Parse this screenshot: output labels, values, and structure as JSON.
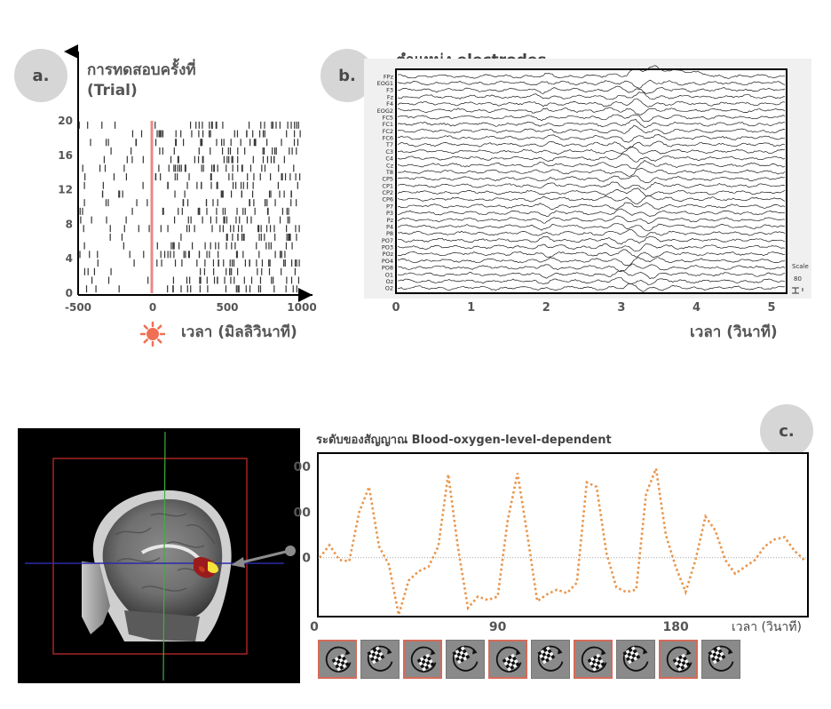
{
  "panels": [
    {
      "id": "a",
      "badge": "a.",
      "ylabel_line1": "การทดสอบครั้งที่",
      "ylabel_line2": "(Trial)",
      "xlabel": "เวลา (มิลลิวินาที)",
      "stimulus_icon": "sun-icon",
      "stimulus_color": "#ef6f55",
      "onset_line_color": "#e88a8a"
    },
    {
      "id": "b",
      "badge": "b.",
      "title": "ตำแหน่ง electrodes",
      "xlabel": "เวลา (วินาที)",
      "scale_label": "Scale",
      "scale_value": "80"
    },
    {
      "id": "c",
      "badge": "c.",
      "title": "ระดับของสัญญาณ Blood-oxygen-level-dependent",
      "xlabel": "เวลา (วินาที)",
      "series_color": "#e9954a",
      "stimulus_frame_count": 10
    }
  ],
  "chart_data": [
    {
      "type": "scatter",
      "subtype": "raster",
      "title": "",
      "xlabel": "เวลา (มิลลิวินาที)",
      "ylabel": "การทดสอบครั้งที่ (Trial)",
      "xlim": [
        -500,
        1000
      ],
      "ylim": [
        0,
        20
      ],
      "xticks": [
        -500,
        0,
        500,
        1000
      ],
      "yticks": [
        0,
        4,
        8,
        12,
        16,
        20
      ],
      "stimulus_onset": 0,
      "trials": 20,
      "spike_density_before": "sparse",
      "spike_density_after": "dense"
    },
    {
      "type": "line",
      "subtype": "multichannel-eeg",
      "title": "ตำแหน่ง electrodes",
      "xlabel": "เวลา (วินาที)",
      "xlim": [
        0,
        5.2
      ],
      "xticks": [
        0,
        1,
        2,
        3,
        4,
        5
      ],
      "channels": [
        "FPz",
        "EOG1",
        "F3",
        "Fz",
        "F4",
        "EOG2",
        "FC5",
        "FC1",
        "FC2",
        "FC6",
        "T7",
        "C3",
        "C4",
        "Cz",
        "T8",
        "CP5",
        "CP1",
        "CP2",
        "CP6",
        "P7",
        "P3",
        "Pz",
        "P4",
        "P8",
        "PO7",
        "PO3",
        "POz",
        "PO4",
        "PO8",
        "O1",
        "Oz",
        "O2"
      ],
      "scale": 80
    },
    {
      "type": "line",
      "title": "ระดับของสัญญาณ Blood-oxygen-level-dependent",
      "xlabel": "เวลา (วินาที)",
      "ylabel": "",
      "xlim": [
        0,
        245
      ],
      "ylim": [
        -250,
        450
      ],
      "xticks": [
        0,
        90,
        180
      ],
      "yticks": [
        0,
        200,
        400
      ],
      "baseline": 0,
      "x": [
        0,
        5,
        10,
        15,
        20,
        25,
        30,
        35,
        40,
        45,
        50,
        55,
        60,
        65,
        70,
        75,
        80,
        85,
        90,
        95,
        100,
        105,
        110,
        115,
        120,
        125,
        130,
        135,
        140,
        145,
        150,
        155,
        160,
        165,
        170,
        175,
        180,
        185,
        190,
        195,
        200,
        205,
        210,
        215,
        220,
        225,
        230,
        235,
        240,
        245
      ],
      "y": [
        0,
        55,
        -10,
        -15,
        200,
        310,
        50,
        -30,
        -250,
        -100,
        -60,
        -40,
        50,
        365,
        40,
        -220,
        -170,
        -185,
        -170,
        160,
        370,
        100,
        -190,
        -160,
        -140,
        -155,
        -110,
        330,
        310,
        20,
        -130,
        -150,
        -140,
        280,
        390,
        100,
        -40,
        -150,
        -10,
        180,
        120,
        -10,
        -70,
        -40,
        -10,
        50,
        80,
        90,
        30,
        -10
      ]
    }
  ]
}
